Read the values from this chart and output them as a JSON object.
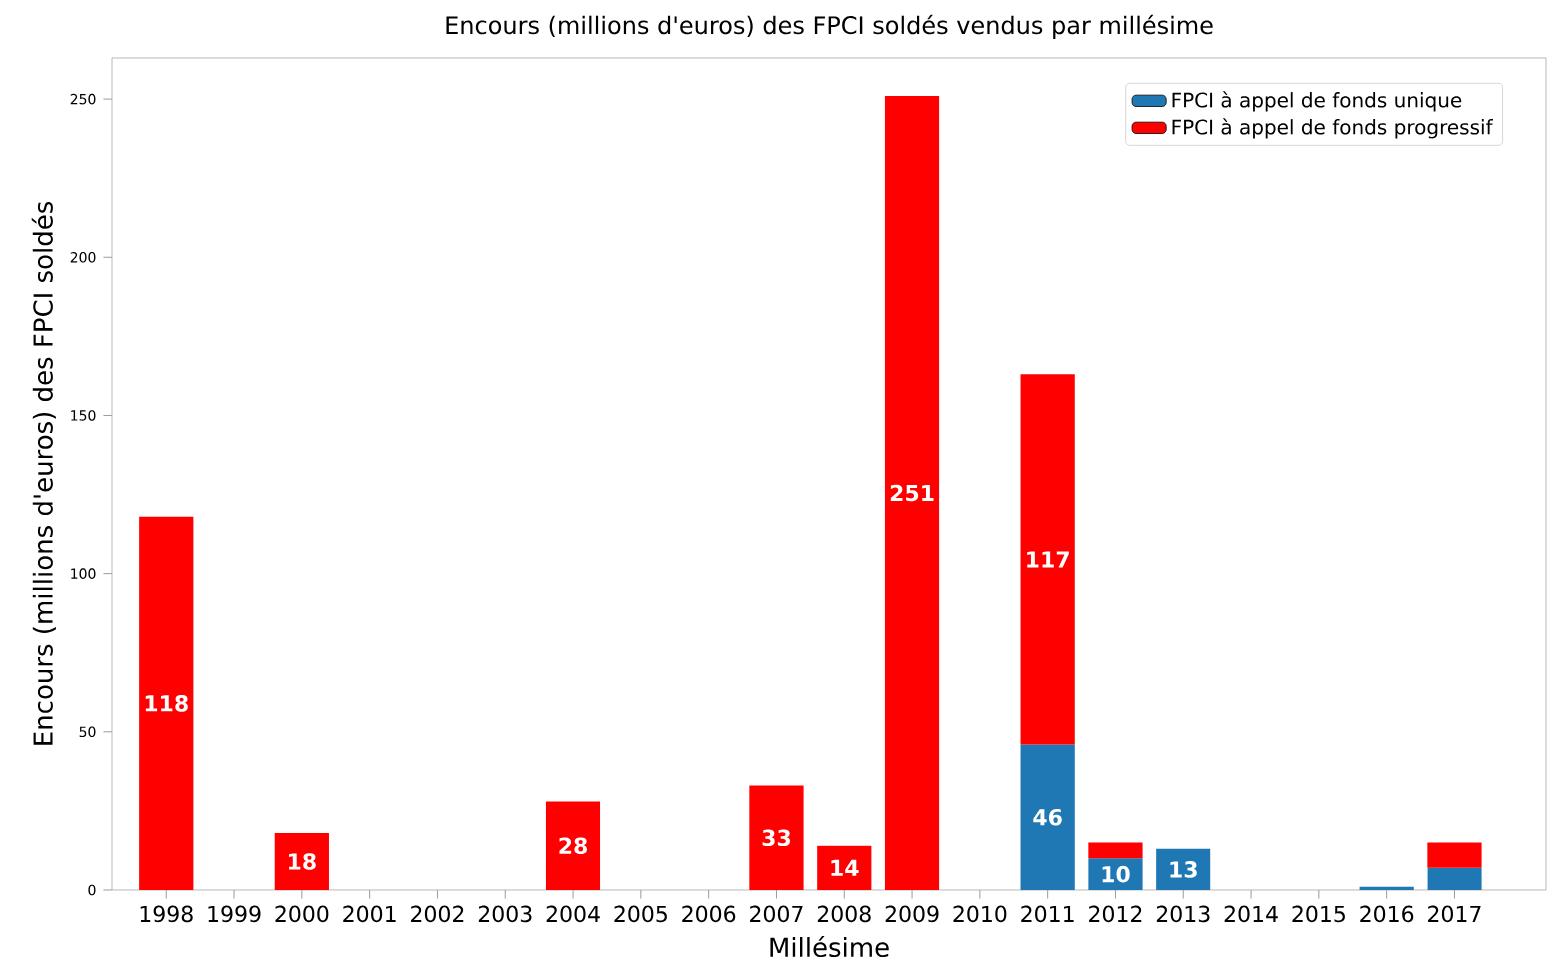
{
  "chart_data": {
    "type": "bar",
    "stacked": true,
    "title": "Encours (millions d'euros) des FPCI soldés vendus par millésime",
    "xlabel": "Millésime",
    "ylabel": "Encours (millions d'euros) des FPCI soldés",
    "categories": [
      "1998",
      "1999",
      "2000",
      "2001",
      "2002",
      "2003",
      "2004",
      "2005",
      "2006",
      "2007",
      "2008",
      "2009",
      "2010",
      "2011",
      "2012",
      "2013",
      "2014",
      "2015",
      "2016",
      "2017"
    ],
    "series": [
      {
        "name": "FPCI à appel de fonds unique",
        "color": "#1f77b4",
        "values": [
          null,
          null,
          null,
          null,
          null,
          null,
          null,
          null,
          null,
          null,
          null,
          null,
          null,
          46,
          10,
          13,
          null,
          null,
          1,
          7
        ],
        "value_labels": [
          null,
          null,
          null,
          null,
          null,
          null,
          null,
          null,
          null,
          null,
          null,
          null,
          null,
          "46",
          "10",
          "13",
          null,
          null,
          null,
          null
        ]
      },
      {
        "name": "FPCI à appel de fonds progressif",
        "color": "#ff0000",
        "values": [
          118,
          null,
          18,
          null,
          null,
          null,
          28,
          null,
          null,
          33,
          14,
          251,
          null,
          117,
          5,
          null,
          null,
          null,
          null,
          8
        ],
        "value_labels": [
          "118",
          null,
          "18",
          null,
          null,
          null,
          "28",
          null,
          null,
          "33",
          "14",
          "251",
          null,
          "117",
          null,
          null,
          null,
          null,
          null,
          null
        ]
      }
    ],
    "ylim": [
      0,
      263
    ],
    "yticks": [
      0,
      50,
      100,
      150,
      200,
      250
    ],
    "legend": "top right"
  }
}
